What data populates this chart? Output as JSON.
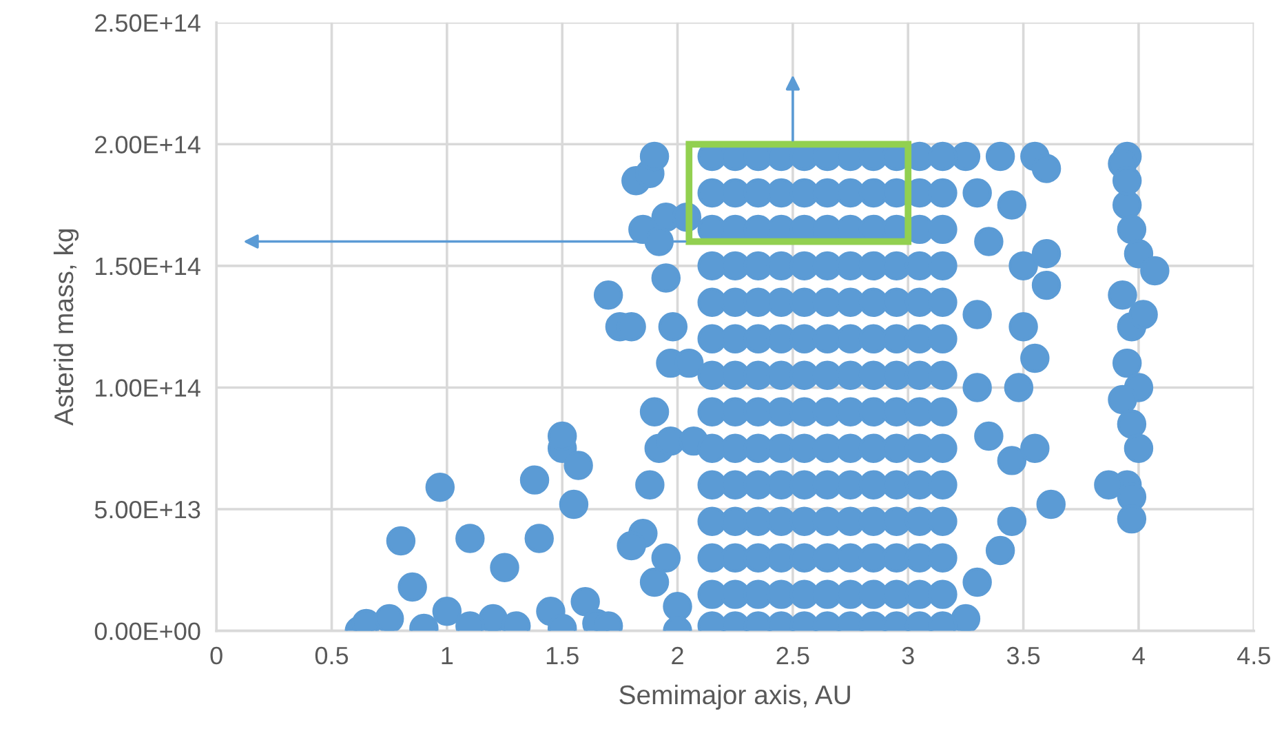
{
  "chart_data": {
    "type": "scatter",
    "xlabel": "Semimajor axis, AU",
    "ylabel": "Asterid mass, kg",
    "xlim": [
      0,
      4.5
    ],
    "xticks": [
      0,
      0.5,
      1,
      1.5,
      2,
      2.5,
      3,
      3.5,
      4,
      4.5
    ],
    "ylim": [
      0,
      250000000000000.0
    ],
    "yticks": [
      {
        "value": 0,
        "label": "0.00E+00"
      },
      {
        "value": 50000000000000.0,
        "label": "5.00E+13"
      },
      {
        "value": 100000000000000.0,
        "label": "1.00E+14"
      },
      {
        "value": 150000000000000.0,
        "label": "1.50E+14"
      },
      {
        "value": 200000000000000.0,
        "label": "2.00E+14"
      },
      {
        "value": 250000000000000.0,
        "label": "2.50E+14"
      }
    ],
    "grid": true,
    "marker": "circle",
    "x": [
      2.15,
      2.25,
      2.35,
      2.45,
      2.55,
      2.65,
      2.75,
      2.85,
      2.95,
      3.05,
      3.15
    ],
    "series": [
      {
        "color": "#5b9bd5",
        "x": [
          0.62,
          0.65,
          0.8,
          0.85,
          0.97,
          1.1,
          1.25,
          1.38,
          1.4,
          1.5,
          1.5,
          1.57,
          1.55,
          1.6,
          1.65,
          1.0,
          0.75,
          1.2,
          1.3,
          1.45,
          1.7,
          1.75,
          1.8,
          1.82,
          1.88,
          1.9,
          1.85,
          1.95,
          1.92,
          1.95,
          1.98,
          1.97,
          1.9,
          1.92,
          1.88,
          1.85,
          1.95,
          1.9,
          2.0,
          1.8,
          1.97,
          2.05,
          2.07,
          2.04,
          3.25,
          3.3,
          3.35,
          3.3,
          3.4,
          3.45,
          3.5,
          3.55,
          3.6,
          3.6,
          3.5,
          3.55,
          3.48,
          3.45,
          3.55,
          3.62,
          3.45,
          3.4,
          3.3,
          3.25,
          3.35,
          3.3,
          3.6,
          3.95,
          3.93,
          3.95,
          3.97,
          4.0,
          4.07,
          3.93,
          3.97,
          3.95,
          4.0,
          3.93,
          3.97,
          4.0,
          3.95,
          3.87,
          3.97,
          3.97,
          3.95,
          4.02,
          2.0,
          1.7,
          1.5,
          1.1,
          0.9
        ],
        "values": [
          0,
          3000000000000.0,
          37000000000000.0,
          18000000000000.0,
          59000000000000.0,
          38000000000000.0,
          26000000000000.0,
          62000000000000.0,
          38000000000000.0,
          75000000000000.0,
          80000000000000.0,
          68000000000000.0,
          52000000000000.0,
          12000000000000.0,
          3000000000000.0,
          8000000000000.0,
          5000000000000.0,
          5000000000000.0,
          2000000000000.0,
          8000000000000.0,
          138000000000000.0,
          125000000000000.0,
          125000000000000.0,
          185000000000000.0,
          188000000000000.0,
          195000000000000.0,
          165000000000000.0,
          170000000000000.0,
          160000000000000.0,
          145000000000000.0,
          125000000000000.0,
          110000000000000.0,
          90000000000000.0,
          75000000000000.0,
          60000000000000.0,
          40000000000000.0,
          30000000000000.0,
          20000000000000.0,
          10000000000000.0,
          35000000000000.0,
          78000000000000.0,
          110000000000000.0,
          78000000000000.0,
          170000000000000.0,
          195000000000000.0,
          180000000000000.0,
          160000000000000.0,
          130000000000000.0,
          195000000000000.0,
          175000000000000.0,
          150000000000000.0,
          195000000000000.0,
          190000000000000.0,
          142000000000000.0,
          125000000000000.0,
          112000000000000.0,
          100000000000000.0,
          70000000000000.0,
          75000000000000.0,
          52000000000000.0,
          45000000000000.0,
          33000000000000.0,
          20000000000000.0,
          5000000000000.0,
          80000000000000.0,
          100000000000000.0,
          155000000000000.0,
          195000000000000.0,
          192000000000000.0,
          175000000000000.0,
          165000000000000.0,
          155000000000000.0,
          148000000000000.0,
          138000000000000.0,
          125000000000000.0,
          110000000000000.0,
          100000000000000.0,
          95000000000000.0,
          85000000000000.0,
          75000000000000.0,
          60000000000000.0,
          60000000000000.0,
          55000000000000.0,
          46000000000000.0,
          185000000000000.0,
          130000000000000.0,
          0,
          2000000000000.0,
          1000000000000.0,
          2000000000000.0,
          1000000000000.0
        ]
      },
      {
        "color": "#5b9bd5",
        "values": [
          2000000000000.0,
          2000000000000.0,
          2000000000000.0,
          2000000000000.0,
          2000000000000.0,
          2000000000000.0,
          2000000000000.0,
          2000000000000.0,
          2000000000000.0,
          2000000000000.0,
          2000000000000.0
        ]
      },
      {
        "color": "#5b9bd5",
        "values": [
          15000000000000.0,
          15000000000000.0,
          15000000000000.0,
          15000000000000.0,
          15000000000000.0,
          15000000000000.0,
          15000000000000.0,
          15000000000000.0,
          15000000000000.0,
          15000000000000.0,
          15000000000000.0
        ]
      },
      {
        "color": "#5b9bd5",
        "values": [
          30000000000000.0,
          30000000000000.0,
          30000000000000.0,
          30000000000000.0,
          30000000000000.0,
          30000000000000.0,
          30000000000000.0,
          30000000000000.0,
          30000000000000.0,
          30000000000000.0,
          30000000000000.0
        ]
      },
      {
        "color": "#5b9bd5",
        "values": [
          45000000000000.0,
          45000000000000.0,
          45000000000000.0,
          45000000000000.0,
          45000000000000.0,
          45000000000000.0,
          45000000000000.0,
          45000000000000.0,
          45000000000000.0,
          45000000000000.0,
          45000000000000.0
        ]
      },
      {
        "color": "#5b9bd5",
        "values": [
          60000000000000.0,
          60000000000000.0,
          60000000000000.0,
          60000000000000.0,
          60000000000000.0,
          60000000000000.0,
          60000000000000.0,
          60000000000000.0,
          60000000000000.0,
          60000000000000.0,
          60000000000000.0
        ]
      },
      {
        "color": "#5b9bd5",
        "values": [
          75000000000000.0,
          75000000000000.0,
          75000000000000.0,
          75000000000000.0,
          75000000000000.0,
          75000000000000.0,
          75000000000000.0,
          75000000000000.0,
          75000000000000.0,
          75000000000000.0,
          75000000000000.0
        ]
      },
      {
        "color": "#5b9bd5",
        "values": [
          90000000000000.0,
          90000000000000.0,
          90000000000000.0,
          90000000000000.0,
          90000000000000.0,
          90000000000000.0,
          90000000000000.0,
          90000000000000.0,
          90000000000000.0,
          90000000000000.0,
          90000000000000.0
        ]
      },
      {
        "color": "#5b9bd5",
        "values": [
          105000000000000.0,
          105000000000000.0,
          105000000000000.0,
          105000000000000.0,
          105000000000000.0,
          105000000000000.0,
          105000000000000.0,
          105000000000000.0,
          105000000000000.0,
          105000000000000.0,
          105000000000000.0
        ]
      },
      {
        "color": "#5b9bd5",
        "values": [
          120000000000000.0,
          120000000000000.0,
          120000000000000.0,
          120000000000000.0,
          120000000000000.0,
          120000000000000.0,
          120000000000000.0,
          120000000000000.0,
          120000000000000.0,
          120000000000000.0,
          120000000000000.0
        ]
      },
      {
        "color": "#5b9bd5",
        "values": [
          135000000000000.0,
          135000000000000.0,
          135000000000000.0,
          135000000000000.0,
          135000000000000.0,
          135000000000000.0,
          135000000000000.0,
          135000000000000.0,
          135000000000000.0,
          135000000000000.0,
          135000000000000.0
        ]
      },
      {
        "color": "#5b9bd5",
        "values": [
          150000000000000.0,
          150000000000000.0,
          150000000000000.0,
          150000000000000.0,
          150000000000000.0,
          150000000000000.0,
          150000000000000.0,
          150000000000000.0,
          150000000000000.0,
          150000000000000.0,
          150000000000000.0
        ]
      },
      {
        "color": "#5b9bd5",
        "values": [
          165000000000000.0,
          165000000000000.0,
          165000000000000.0,
          165000000000000.0,
          165000000000000.0,
          165000000000000.0,
          165000000000000.0,
          165000000000000.0,
          165000000000000.0,
          165000000000000.0,
          165000000000000.0
        ]
      },
      {
        "color": "#5b9bd5",
        "values": [
          180000000000000.0,
          180000000000000.0,
          180000000000000.0,
          180000000000000.0,
          180000000000000.0,
          180000000000000.0,
          180000000000000.0,
          180000000000000.0,
          180000000000000.0,
          180000000000000.0,
          180000000000000.0
        ]
      },
      {
        "color": "#5b9bd5",
        "values": [
          195000000000000.0,
          195000000000000.0,
          195000000000000.0,
          195000000000000.0,
          195000000000000.0,
          195000000000000.0,
          195000000000000.0,
          195000000000000.0,
          195000000000000.0,
          195000000000000.0,
          195000000000000.0
        ]
      }
    ]
  }
}
